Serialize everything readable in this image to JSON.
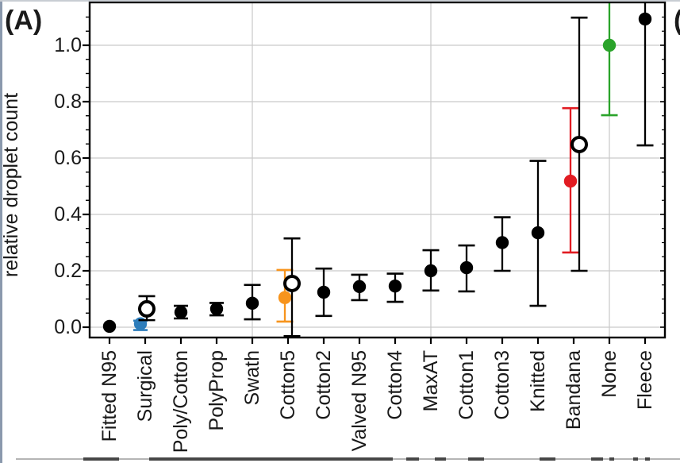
{
  "panel_label": "(A)",
  "next_panel_fragment": "(B",
  "colors": {
    "surgical_blue": "#2d7dbb",
    "cotton5_orange": "#f7941d",
    "bandana_red": "#e11b22",
    "none_green": "#2aa32a",
    "point_black": "#000000",
    "gridline_gray": "#c9c9c9",
    "frame_black": "#000000"
  },
  "chart_data": {
    "type": "scatter",
    "title": "",
    "xlabel": "",
    "ylabel": "relative droplet count",
    "ylim": [
      -0.04,
      1.15
    ],
    "grid": "horizontal gridlines at 0.2 steps; vertical gridlines at Swath, MaxAT, None",
    "legend": "none; filled dots = measurement (colored masks highlighted), open circles = second trial",
    "y_major_ticks": [
      {
        "value": 0.0,
        "label": "0.0"
      },
      {
        "value": 0.2,
        "label": "0.2"
      },
      {
        "value": 0.4,
        "label": "0.4"
      },
      {
        "value": 0.6,
        "label": "0.6"
      },
      {
        "value": 0.8,
        "label": "0.8"
      },
      {
        "value": 1.0,
        "label": "1.0"
      }
    ],
    "y_minor_step": 0.05,
    "y_minor_max": 1.1,
    "categories": [
      "Fitted N95",
      "Surgical",
      "Poly/Cotton",
      "PolyProp",
      "Swath",
      "Cotton5",
      "Cotton2",
      "Valved N95",
      "Cotton4",
      "MaxAT",
      "Cotton1",
      "Cotton3",
      "Knitted",
      "Bandana",
      "None",
      "Fleece"
    ],
    "vgrid_category_indices": [
      4,
      9,
      14
    ],
    "points": [
      {
        "label": "Fitted N95",
        "value": 0.003,
        "err": null,
        "color": "#000000"
      },
      {
        "label": "Surgical",
        "value": 0.012,
        "err": [
          -0.01,
          0.023
        ],
        "color": "#2d7dbb",
        "dx": -6,
        "open": {
          "value": 0.065,
          "err": [
            0.025,
            0.11
          ],
          "dx": 2
        }
      },
      {
        "label": "Poly/Cotton",
        "value": 0.053,
        "err": [
          0.031,
          0.076
        ],
        "color": "#000000"
      },
      {
        "label": "PolyProp",
        "value": 0.065,
        "err": [
          0.042,
          0.086
        ],
        "color": "#000000"
      },
      {
        "label": "Swath",
        "value": 0.085,
        "err": [
          0.028,
          0.15
        ],
        "color": "#000000"
      },
      {
        "label": "Cotton5",
        "value": 0.105,
        "err": [
          0.02,
          0.203
        ],
        "color": "#f7941d",
        "dx": -4,
        "open": {
          "value": 0.155,
          "err": [
            -0.032,
            0.315
          ],
          "dx": 5
        }
      },
      {
        "label": "Cotton2",
        "value": 0.124,
        "err": [
          0.04,
          0.208
        ],
        "color": "#000000"
      },
      {
        "label": "Valved N95",
        "value": 0.144,
        "err": [
          0.096,
          0.186
        ],
        "color": "#000000"
      },
      {
        "label": "Cotton4",
        "value": 0.146,
        "err": [
          0.09,
          0.19
        ],
        "color": "#000000"
      },
      {
        "label": "MaxAT",
        "value": 0.2,
        "err": [
          0.13,
          0.273
        ],
        "color": "#000000"
      },
      {
        "label": "Cotton1",
        "value": 0.211,
        "err": [
          0.127,
          0.29
        ],
        "color": "#000000"
      },
      {
        "label": "Cotton3",
        "value": 0.3,
        "err": [
          0.2,
          0.39
        ],
        "color": "#000000"
      },
      {
        "label": "Knitted",
        "value": 0.335,
        "err": [
          0.076,
          0.59
        ],
        "color": "#000000"
      },
      {
        "label": "Bandana",
        "value": 0.518,
        "err": [
          0.265,
          0.777
        ],
        "color": "#e11b22",
        "dx": -4,
        "open": {
          "value": 0.648,
          "err": [
            0.2,
            1.098
          ],
          "dx": 7
        }
      },
      {
        "label": "None",
        "value": 1.0,
        "err": [
          0.752,
          1.2
        ],
        "color": "#2aa32a",
        "err_top_clipped": true
      },
      {
        "label": "Fleece",
        "value": 1.093,
        "err": [
          0.645,
          1.2
        ],
        "color": "#000000",
        "err_top_clipped": true
      }
    ]
  }
}
